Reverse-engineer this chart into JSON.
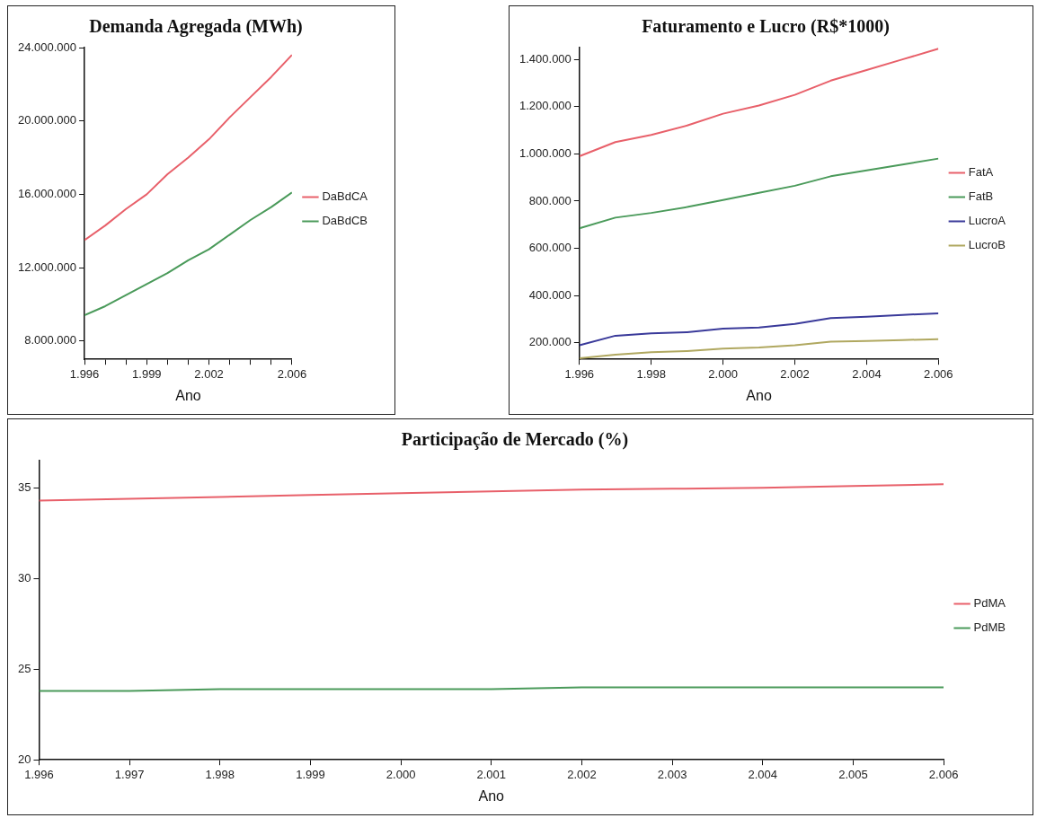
{
  "chart_data": [
    {
      "type": "line",
      "title": "Demanda Agregada (MWh)",
      "xlabel": "Ano",
      "legend": "right",
      "x": [
        1996,
        1997,
        1998,
        1999,
        2000,
        2001,
        2002,
        2003,
        2004,
        2005,
        2006
      ],
      "xlim": [
        1996,
        2006
      ],
      "xticks": [
        {
          "value": 1996,
          "label": "1.996"
        },
        {
          "value": 1997,
          "label": null
        },
        {
          "value": 1998,
          "label": null
        },
        {
          "value": 1999,
          "label": "1.999"
        },
        {
          "value": 2000,
          "label": null
        },
        {
          "value": 2001,
          "label": null
        },
        {
          "value": 2002,
          "label": "2.002"
        },
        {
          "value": 2003,
          "label": null
        },
        {
          "value": 2004,
          "label": null
        },
        {
          "value": 2005,
          "label": null
        },
        {
          "value": 2006,
          "label": "2.006"
        }
      ],
      "ylim": [
        7000000,
        24000000
      ],
      "yticks": [
        {
          "value": 8000000,
          "label": "8.000.000"
        },
        {
          "value": 12000000,
          "label": "12.000.000"
        },
        {
          "value": 16000000,
          "label": "16.000.000"
        },
        {
          "value": 20000000,
          "label": "20.000.000"
        },
        {
          "value": 24000000,
          "label": "24.000.000"
        }
      ],
      "series": [
        {
          "name": "DaBdCA",
          "color": "#e8606a",
          "values": [
            13500000,
            14300000,
            15200000,
            16000000,
            17100000,
            18000000,
            19000000,
            20200000,
            21300000,
            22400000,
            23600000
          ]
        },
        {
          "name": "DaBdCB",
          "color": "#4a9a5a",
          "values": [
            9400000,
            9900000,
            10500000,
            11100000,
            11700000,
            12400000,
            13000000,
            13800000,
            14600000,
            15300000,
            16100000
          ]
        }
      ]
    },
    {
      "type": "line",
      "title": "Faturamento e Lucro (R$*1000)",
      "xlabel": "Ano",
      "legend": "right",
      "x": [
        1996,
        1997,
        1998,
        1999,
        2000,
        2001,
        2002,
        2003,
        2004,
        2005,
        2006
      ],
      "xlim": [
        1996,
        2006
      ],
      "xticks": [
        {
          "value": 1996,
          "label": "1.996"
        },
        {
          "value": 1998,
          "label": "1.998"
        },
        {
          "value": 2000,
          "label": "2.000"
        },
        {
          "value": 2002,
          "label": "2.002"
        },
        {
          "value": 2004,
          "label": "2.004"
        },
        {
          "value": 2006,
          "label": "2.006"
        }
      ],
      "ylim": [
        130000,
        1450000
      ],
      "yticks": [
        {
          "value": 200000,
          "label": "200.000"
        },
        {
          "value": 400000,
          "label": "400.000"
        },
        {
          "value": 600000,
          "label": "600.000"
        },
        {
          "value": 800000,
          "label": "800.000"
        },
        {
          "value": 1000000,
          "label": "1.000.000"
        },
        {
          "value": 1200000,
          "label": "1.200.000"
        },
        {
          "value": 1400000,
          "label": "1.400.000"
        }
      ],
      "series": [
        {
          "name": "FatA",
          "color": "#e8606a",
          "values": [
            990000,
            1050000,
            1080000,
            1120000,
            1170000,
            1205000,
            1250000,
            1310000,
            1355000,
            1400000,
            1445000
          ]
        },
        {
          "name": "FatB",
          "color": "#4a9a5a",
          "values": [
            685000,
            730000,
            750000,
            775000,
            805000,
            835000,
            865000,
            905000,
            930000,
            955000,
            980000
          ]
        },
        {
          "name": "LucroA",
          "color": "#3a3a9a",
          "values": [
            190000,
            230000,
            240000,
            245000,
            260000,
            265000,
            280000,
            305000,
            310000,
            318000,
            325000
          ]
        },
        {
          "name": "LucroB",
          "color": "#b0a860",
          "values": [
            135000,
            150000,
            160000,
            165000,
            175000,
            180000,
            190000,
            205000,
            208000,
            212000,
            215000
          ]
        }
      ]
    },
    {
      "type": "line",
      "title": "Participação de Mercado (%)",
      "xlabel": "Ano",
      "legend": "right",
      "x": [
        1996,
        1997,
        1998,
        1999,
        2000,
        2001,
        2002,
        2003,
        2004,
        2005,
        2006
      ],
      "xlim": [
        1996,
        2006
      ],
      "xticks": [
        {
          "value": 1996,
          "label": "1.996"
        },
        {
          "value": 1997,
          "label": "1.997"
        },
        {
          "value": 1998,
          "label": "1.998"
        },
        {
          "value": 1999,
          "label": "1.999"
        },
        {
          "value": 2000,
          "label": "2.000"
        },
        {
          "value": 2001,
          "label": "2.001"
        },
        {
          "value": 2002,
          "label": "2.002"
        },
        {
          "value": 2003,
          "label": "2.003"
        },
        {
          "value": 2004,
          "label": "2.004"
        },
        {
          "value": 2005,
          "label": "2.005"
        },
        {
          "value": 2006,
          "label": "2.006"
        }
      ],
      "ylim": [
        20,
        36.5
      ],
      "yticks": [
        20,
        25,
        30,
        35
      ],
      "series": [
        {
          "name": "PdMA",
          "color": "#e8606a",
          "values": [
            34.3,
            34.4,
            34.5,
            34.6,
            34.7,
            34.8,
            34.9,
            34.95,
            35,
            35.1,
            35.2
          ]
        },
        {
          "name": "PdMB",
          "color": "#4a9a5a",
          "values": [
            23.8,
            23.8,
            23.9,
            23.9,
            23.9,
            23.9,
            24,
            24,
            24,
            24,
            24
          ]
        }
      ]
    }
  ]
}
